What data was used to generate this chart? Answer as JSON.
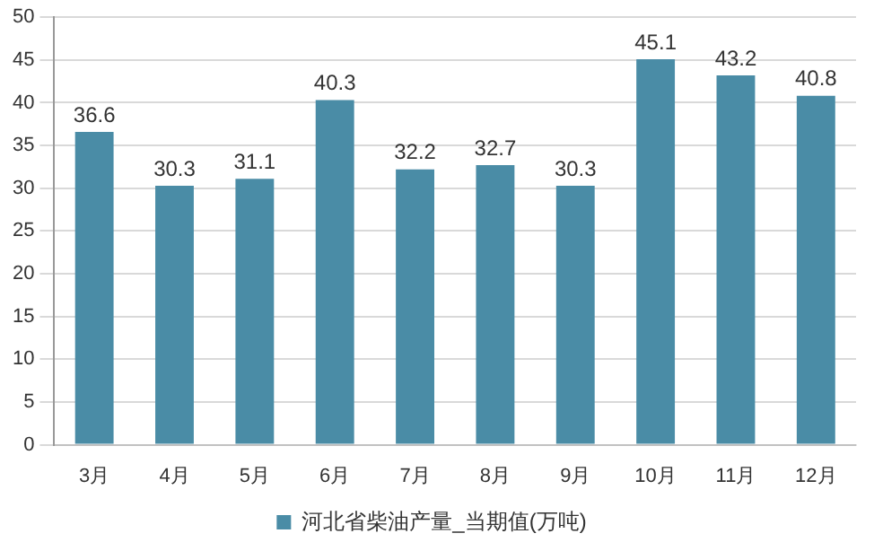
{
  "chart_data": {
    "type": "bar",
    "categories": [
      "3月",
      "4月",
      "5月",
      "6月",
      "7月",
      "8月",
      "9月",
      "10月",
      "11月",
      "12月"
    ],
    "series": [
      {
        "name": "河北省柴油产量_当期值(万吨)",
        "color": "#4a8ca6",
        "values": [
          36.6,
          30.3,
          31.1,
          40.3,
          32.2,
          32.7,
          30.3,
          45.1,
          43.2,
          40.8
        ]
      }
    ],
    "ylim": [
      0,
      50
    ],
    "yticks": [
      0,
      5,
      10,
      15,
      20,
      25,
      30,
      35,
      40,
      45,
      50
    ],
    "grid": "y",
    "legend": "bottom",
    "data_labels": true
  }
}
